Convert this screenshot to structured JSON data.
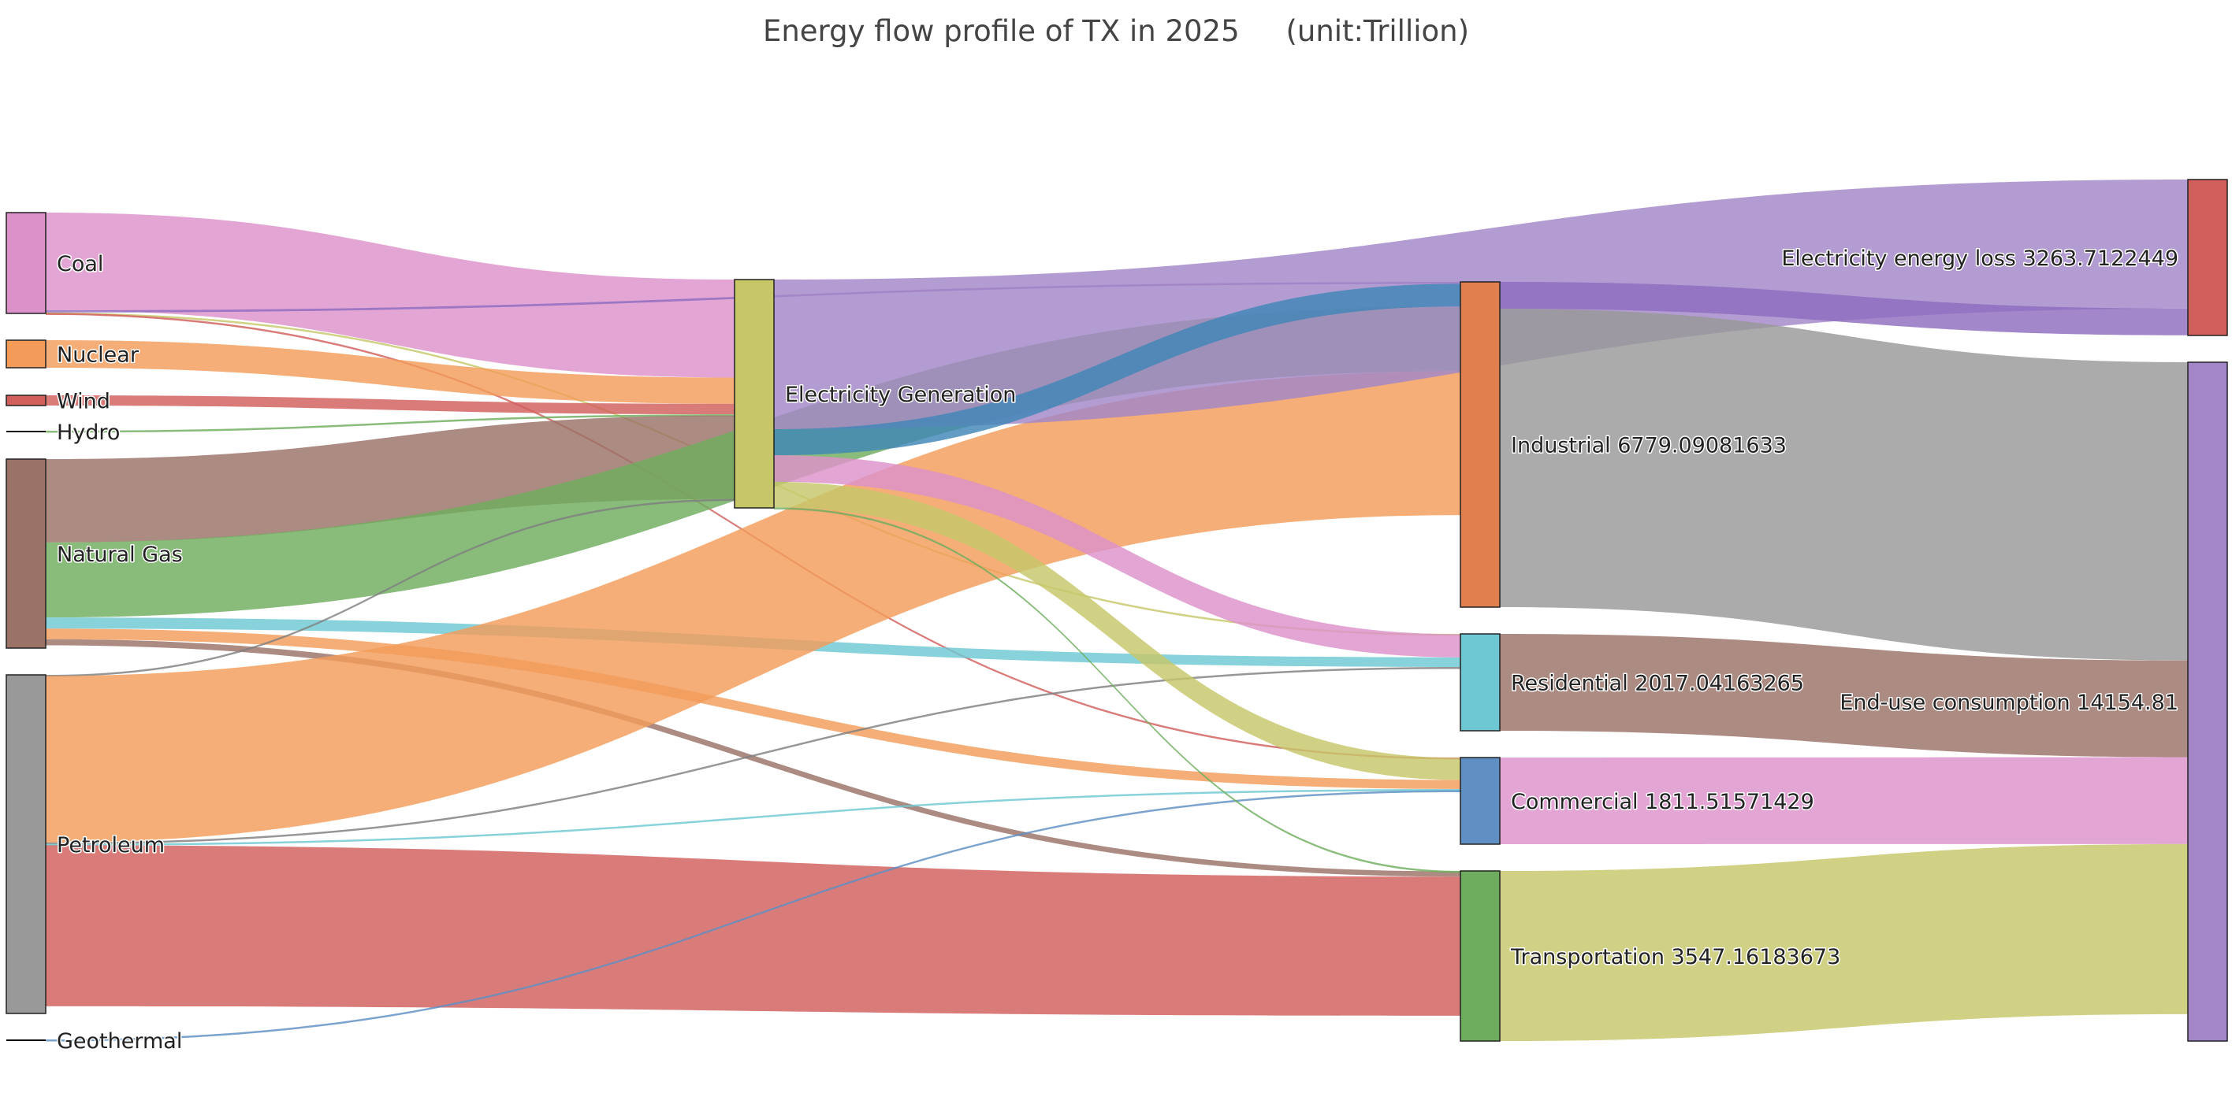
{
  "chart_data": {
    "type": "sankey",
    "title": "Energy flow profile of TX in 2025",
    "unit": "(unit:Trillion)",
    "nodes": [
      {
        "id": "coal",
        "label": "Coal",
        "value": 1800,
        "color": "#dd91c9"
      },
      {
        "id": "nuclear",
        "label": "Nuclear",
        "value": 470,
        "color": "#f39c5a"
      },
      {
        "id": "wind",
        "label": "Wind",
        "value": 190,
        "color": "#d15f5c"
      },
      {
        "id": "hydro",
        "label": "Hydro",
        "value": 25,
        "color": "#000000"
      },
      {
        "id": "natgas",
        "label": "Natural Gas",
        "value": 3400,
        "color": "#9a7266"
      },
      {
        "id": "petroleum",
        "label": "Petroleum",
        "value": 6100,
        "color": "#999999"
      },
      {
        "id": "geothermal",
        "label": "Geothermal",
        "value": 30,
        "color": "#000000"
      },
      {
        "id": "elecgen",
        "label": "Electricity Generation",
        "value": 4100,
        "color": "#c7c76a"
      },
      {
        "id": "industrial",
        "label": "Industrial 6779.09081633",
        "value": 6779.09081633,
        "color": "#e0804f"
      },
      {
        "id": "residential",
        "label": "Residential 2017.04163265",
        "value": 2017.04163265,
        "color": "#6ec8d3"
      },
      {
        "id": "commercial",
        "label": "Commercial 1811.51571429",
        "value": 1811.51571429,
        "color": "#5f8fc3"
      },
      {
        "id": "transportation",
        "label": "Transportation 3547.16183673",
        "value": 3547.16183673,
        "color": "#6fad5e"
      },
      {
        "id": "loss",
        "label": "Electricity energy loss 3263.7122449",
        "value": 3263.7122449,
        "color": "#d15f5c"
      },
      {
        "id": "enduse",
        "label": "End-use consumption 14154.81",
        "value": 14154.81,
        "color": "#a286c7"
      }
    ],
    "links": [
      {
        "source": "coal",
        "target": "elecgen",
        "value": 1760,
        "color": "#dd91c9"
      },
      {
        "source": "coal",
        "target": "industrial",
        "value": 40,
        "color": "#8e6cc0"
      },
      {
        "source": "coal",
        "target": "residential",
        "value": 8,
        "color": "#c7c76a"
      },
      {
        "source": "coal",
        "target": "commercial",
        "value": 8,
        "color": "#d15f5c"
      },
      {
        "source": "nuclear",
        "target": "elecgen",
        "value": 470,
        "color": "#f39c5a"
      },
      {
        "source": "wind",
        "target": "elecgen",
        "value": 190,
        "color": "#d15f5c"
      },
      {
        "source": "hydro",
        "target": "elecgen",
        "value": 20,
        "color": "#6fad5e"
      },
      {
        "source": "natgas",
        "target": "elecgen",
        "value": 1500,
        "color": "#9a7266"
      },
      {
        "source": "natgas",
        "target": "industrial",
        "value": 1350,
        "color": "#6fad5e"
      },
      {
        "source": "natgas",
        "target": "residential",
        "value": 200,
        "color": "#6ec8d3"
      },
      {
        "source": "natgas",
        "target": "commercial",
        "value": 190,
        "color": "#f39c5a"
      },
      {
        "source": "natgas",
        "target": "transportation",
        "value": 110,
        "color": "#9a7266"
      },
      {
        "source": "petroleum",
        "target": "elecgen",
        "value": 20,
        "color": "#7f7f7f"
      },
      {
        "source": "petroleum",
        "target": "industrial",
        "value": 3000,
        "color": "#f39c5a"
      },
      {
        "source": "petroleum",
        "target": "residential",
        "value": 25,
        "color": "#7f7f7f"
      },
      {
        "source": "petroleum",
        "target": "commercial",
        "value": 25,
        "color": "#6ec8d3"
      },
      {
        "source": "petroleum",
        "target": "transportation",
        "value": 2900,
        "color": "#d15f5c"
      },
      {
        "source": "geothermal",
        "target": "commercial",
        "value": 25,
        "color": "#5f8fc3"
      },
      {
        "source": "elecgen",
        "target": "loss",
        "value": 2700,
        "color": "#a286c7"
      },
      {
        "source": "elecgen",
        "target": "industrial",
        "value": 470,
        "color": "#3f86b7"
      },
      {
        "source": "elecgen",
        "target": "residential",
        "value": 480,
        "color": "#dd91c9"
      },
      {
        "source": "elecgen",
        "target": "commercial",
        "value": 460,
        "color": "#c7c76a"
      },
      {
        "source": "elecgen",
        "target": "transportation",
        "value": 10,
        "color": "#6fad5e"
      },
      {
        "source": "industrial",
        "target": "loss",
        "value": 560,
        "color": "#8e6cc0"
      },
      {
        "source": "industrial",
        "target": "enduse",
        "value": 6219,
        "color": "#999999"
      },
      {
        "source": "residential",
        "target": "enduse",
        "value": 2017,
        "color": "#9a7266"
      },
      {
        "source": "commercial",
        "target": "enduse",
        "value": 1811,
        "color": "#dd91c9"
      },
      {
        "source": "transportation",
        "target": "enduse",
        "value": 3547,
        "color": "#c7c76a"
      }
    ]
  }
}
